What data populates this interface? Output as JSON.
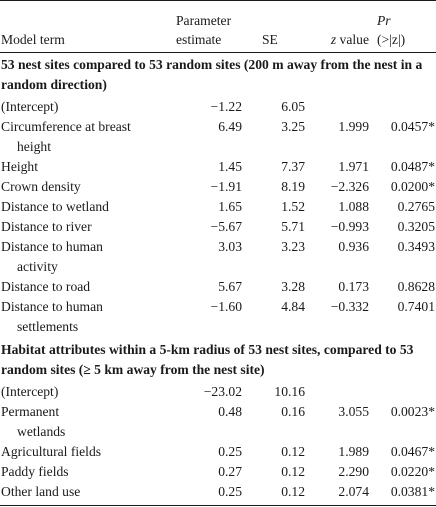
{
  "headers": {
    "term": "Model term",
    "estimate_line1": "Parameter",
    "estimate_line2": "estimate",
    "se": "SE",
    "z_italic": "z",
    "z_rest": " value",
    "pr_line1": "Pr",
    "pr_line2": "(>|z|)"
  },
  "sections": [
    {
      "title": "53 nest sites compared to 53 random sites (200 m away from the nest in a random direction)",
      "rows": [
        {
          "term": [
            "(Intercept)"
          ],
          "estimate": "−1.22",
          "se": "6.05",
          "z": "",
          "pr": ""
        },
        {
          "term": [
            "Circumference at breast",
            "height"
          ],
          "estimate": "6.49",
          "se": "3.25",
          "z": "1.999",
          "pr": "0.0457*"
        },
        {
          "term": [
            "Height"
          ],
          "estimate": "1.45",
          "se": "7.37",
          "z": "1.971",
          "pr": "0.0487*"
        },
        {
          "term": [
            "Crown density"
          ],
          "estimate": "−1.91",
          "se": "8.19",
          "z": "−2.326",
          "pr": "0.0200*"
        },
        {
          "term": [
            "Distance to wetland"
          ],
          "estimate": "1.65",
          "se": "1.52",
          "z": "1.088",
          "pr": "0.2765"
        },
        {
          "term": [
            "Distance to river"
          ],
          "estimate": "−5.67",
          "se": "5.71",
          "z": "−0.993",
          "pr": "0.3205"
        },
        {
          "term": [
            "Distance to human",
            "activity"
          ],
          "estimate": "3.03",
          "se": "3.23",
          "z": "0.936",
          "pr": "0.3493"
        },
        {
          "term": [
            "Distance to road"
          ],
          "estimate": "5.67",
          "se": "3.28",
          "z": "0.173",
          "pr": "0.8628"
        },
        {
          "term": [
            "Distance to human",
            "settlements"
          ],
          "estimate": "−1.60",
          "se": "4.84",
          "z": "−0.332",
          "pr": "0.7401"
        }
      ]
    },
    {
      "title": "Habitat attributes within a 5-km radius of 53 nest sites, compared to 53 random sites (≥ 5 km away from the nest site)",
      "rows": [
        {
          "term": [
            "(Intercept)"
          ],
          "estimate": "−23.02",
          "se": "10.16",
          "z": "",
          "pr": ""
        },
        {
          "term": [
            "Permanent",
            "wetlands"
          ],
          "estimate": "0.48",
          "se": "0.16",
          "z": "3.055",
          "pr": "0.0023*"
        },
        {
          "term": [
            "Agricultural fields"
          ],
          "estimate": "0.25",
          "se": "0.12",
          "z": "1.989",
          "pr": "0.0467*"
        },
        {
          "term": [
            "Paddy fields"
          ],
          "estimate": "0.27",
          "se": "0.12",
          "z": "2.290",
          "pr": "0.0220*"
        },
        {
          "term": [
            "Other land use"
          ],
          "estimate": "0.25",
          "se": "0.12",
          "z": "2.074",
          "pr": "0.0381*"
        }
      ]
    }
  ]
}
